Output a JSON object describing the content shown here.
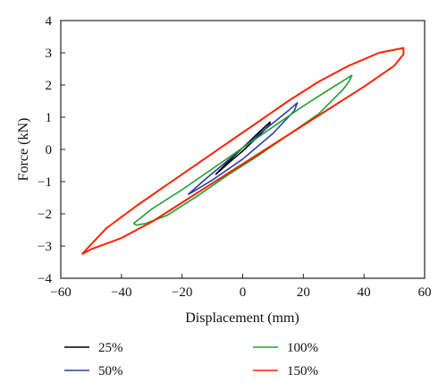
{
  "chart_data": {
    "type": "line",
    "title": "",
    "xlabel": "Displacement (mm)",
    "ylabel": "Force (kN)",
    "xlim": [
      -60,
      60
    ],
    "ylim": [
      -4,
      4
    ],
    "xticks": [
      -60,
      -40,
      -20,
      0,
      20,
      40,
      60
    ],
    "yticks": [
      -4,
      -3,
      -2,
      -1,
      0,
      1,
      2,
      3,
      4
    ],
    "xtick_labels": [
      "−60",
      "−40",
      "−20",
      "0",
      "20",
      "40",
      "60"
    ],
    "ytick_labels": [
      "−4",
      "−3",
      "−2",
      "−1",
      "0",
      "1",
      "2",
      "3",
      "4"
    ],
    "grid": false,
    "legend_position": "bottom",
    "series": [
      {
        "name": "25%",
        "color": "#000000",
        "x": [
          -9,
          -5,
          0,
          5,
          9,
          9,
          5,
          0,
          -5,
          -9
        ],
        "y": [
          -0.78,
          -0.4,
          0.05,
          0.5,
          0.85,
          0.78,
          0.4,
          -0.05,
          -0.45,
          -0.78
        ]
      },
      {
        "name": "50%",
        "color": "#2b3ea8",
        "x": [
          -18,
          -12,
          -5,
          0,
          5,
          10,
          15,
          18,
          17,
          10,
          0,
          -10,
          -17,
          -18
        ],
        "y": [
          -1.4,
          -0.9,
          -0.35,
          0.05,
          0.45,
          0.82,
          1.2,
          1.45,
          1.2,
          0.5,
          -0.3,
          -0.95,
          -1.35,
          -1.4
        ]
      },
      {
        "name": "100%",
        "color": "#1fa030",
        "x": [
          -36,
          -30,
          -20,
          -10,
          0,
          10,
          20,
          30,
          36,
          35,
          33,
          25,
          15,
          5,
          -5,
          -15,
          -25,
          -32,
          -35,
          -36
        ],
        "y": [
          -2.3,
          -1.85,
          -1.25,
          -0.6,
          0.05,
          0.7,
          1.35,
          1.95,
          2.3,
          2.1,
          1.85,
          1.1,
          0.45,
          -0.2,
          -0.8,
          -1.45,
          -2.05,
          -2.3,
          -2.35,
          -2.3
        ]
      },
      {
        "name": "150%",
        "color": "#ff2200",
        "x": [
          -53,
          -45,
          -35,
          -25,
          -15,
          -5,
          5,
          15,
          25,
          35,
          45,
          53,
          53,
          50,
          40,
          30,
          20,
          10,
          0,
          -10,
          -20,
          -30,
          -40,
          -50,
          -53
        ],
        "y": [
          -3.25,
          -2.45,
          -1.75,
          -1.1,
          -0.45,
          0.2,
          0.85,
          1.5,
          2.1,
          2.6,
          3.0,
          3.15,
          2.95,
          2.6,
          1.95,
          1.35,
          0.75,
          0.15,
          -0.45,
          -1.05,
          -1.65,
          -2.25,
          -2.75,
          -3.1,
          -3.25
        ]
      }
    ]
  }
}
